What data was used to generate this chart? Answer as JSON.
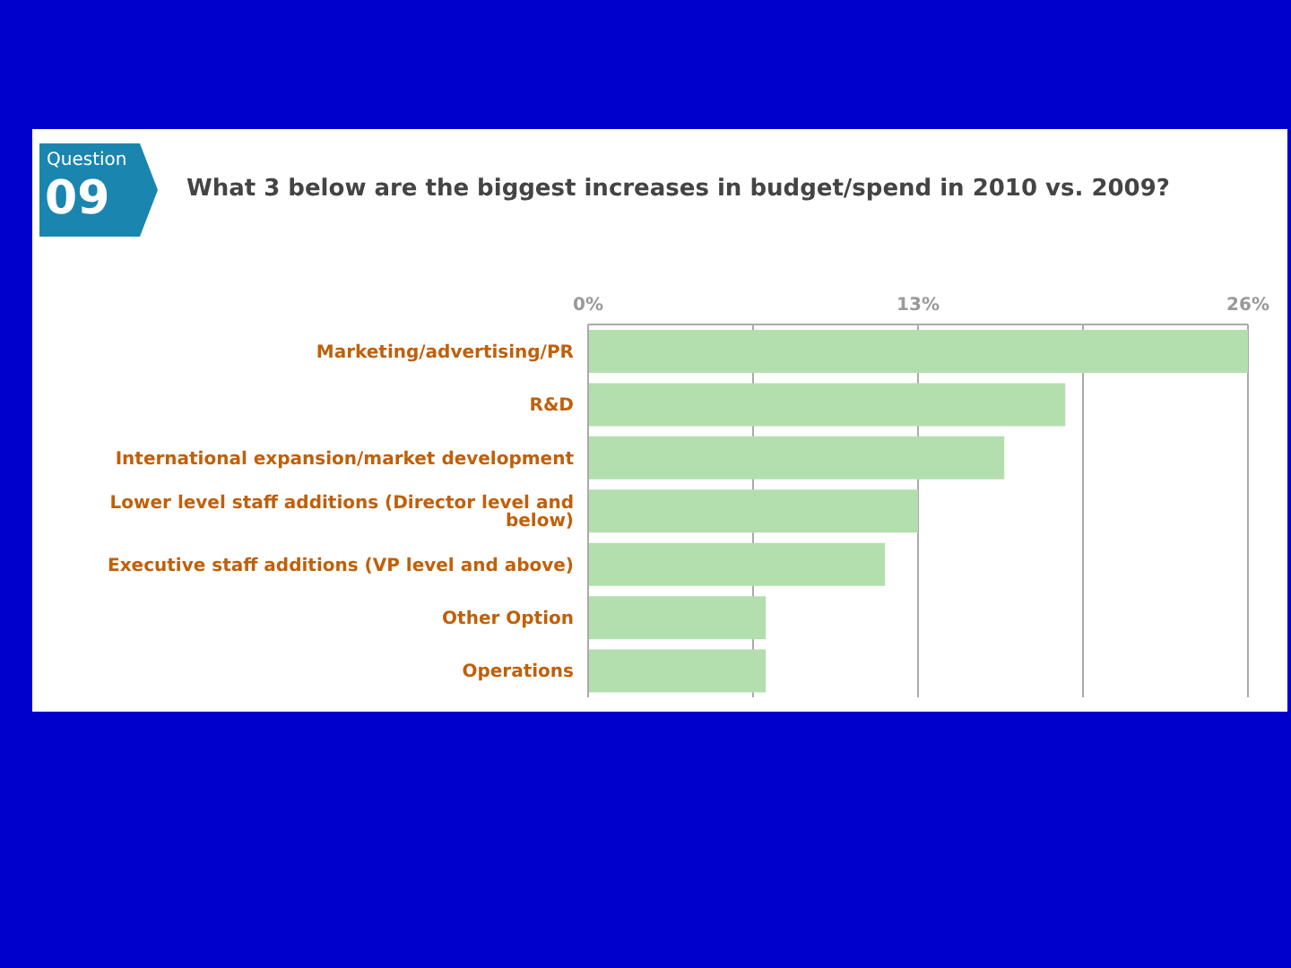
{
  "chart_data": {
    "type": "bar",
    "orientation": "horizontal",
    "title": "What 3 below are the biggest increases in budget/spend in 2010 vs. 2009?",
    "annotations": [
      "Question",
      "09"
    ],
    "categories": [
      "Marketing/advertising/PR",
      "R&D",
      "International expansion/market development",
      "Lower level staff additions (Director level and below)",
      "Executive staff additions (VP level and above)",
      "Other Option",
      "Operations"
    ],
    "values": [
      26,
      18.8,
      16.4,
      13,
      11.7,
      7,
      7
    ],
    "color": "#b3dfae",
    "xlim": [
      0,
      26
    ],
    "xticks": [
      {
        "value": 0,
        "label": "0%"
      },
      {
        "value": 6.5,
        "label": null
      },
      {
        "value": 13,
        "label": "13%"
      },
      {
        "value": 19.5,
        "label": null
      },
      {
        "value": 26,
        "label": "26%"
      }
    ],
    "grid": "x",
    "legend": false
  }
}
